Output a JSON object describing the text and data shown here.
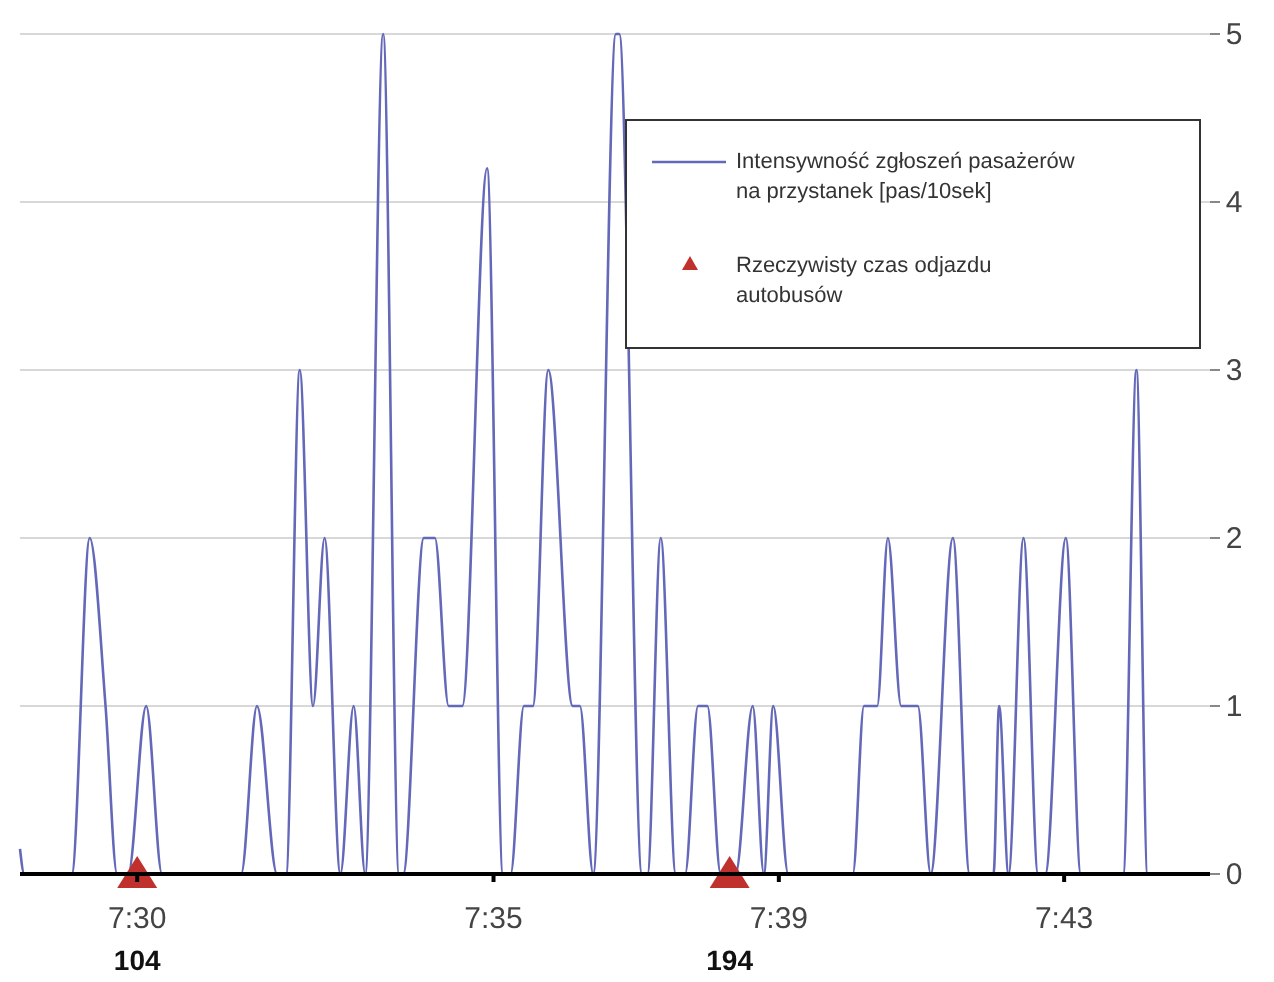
{
  "chart_data": {
    "type": "line",
    "xlim": [
      7.4726,
      7.7508
    ],
    "ylim": [
      0,
      5
    ],
    "yticks": [
      0,
      1,
      2,
      3,
      4,
      5
    ],
    "xticks": [
      {
        "value": 7.5,
        "label": "7:30"
      },
      {
        "value": 7.5833,
        "label": "7:35"
      },
      {
        "value": 7.65,
        "label": "7:39"
      },
      {
        "value": 7.7167,
        "label": "7:43"
      }
    ],
    "grid": "y",
    "legend": "top right",
    "marker": "none",
    "line_style": "solid",
    "series": [
      {
        "name": "Intensywność zgłoszeń pasażerów na przystanek [pas/10sek]",
        "color": "#6468b8",
        "x": [
          7.4726,
          7.4736,
          7.4847,
          7.4889,
          7.4926,
          7.4953,
          7.4979,
          7.5021,
          7.5058,
          7.5243,
          7.528,
          7.5327,
          7.5348,
          7.538,
          7.5411,
          7.5438,
          7.5475,
          7.5506,
          7.5533,
          7.5575,
          7.5612,
          7.5622,
          7.567,
          7.5696,
          7.5728,
          7.576,
          7.5818,
          7.5855,
          7.5873,
          7.5904,
          7.5925,
          7.5961,
          7.6018,
          7.6035,
          7.6066,
          7.6119,
          7.6127,
          7.618,
          7.6193,
          7.6224,
          7.6259,
          7.6281,
          7.6311,
          7.6333,
          7.6364,
          7.6399,
          7.6439,
          7.6465,
          7.6487,
          7.6522,
          7.6673,
          7.6699,
          7.673,
          7.6755,
          7.6786,
          7.6825,
          7.6855,
          7.6907,
          7.6946,
          7.7002,
          7.7015,
          7.7037,
          7.7072,
          7.7106,
          7.7123,
          7.7171,
          7.7206,
          7.7305,
          7.7336,
          7.7362,
          7.7409
        ],
        "values": [
          0.15,
          0,
          0,
          2,
          1,
          0,
          0,
          1,
          0,
          0,
          1,
          0,
          0,
          3,
          1,
          2,
          0,
          1,
          0,
          5,
          0,
          0,
          2,
          2,
          1,
          1,
          4.2,
          0,
          0,
          1,
          1,
          3,
          1,
          1,
          0,
          5,
          5,
          0,
          0,
          2,
          0,
          0,
          1,
          1,
          0,
          0,
          1,
          0,
          1,
          0,
          0,
          1,
          1,
          2,
          1,
          1,
          0,
          2,
          0,
          0,
          1,
          0,
          2,
          0,
          0,
          2,
          0,
          0,
          3,
          0,
          0
        ]
      },
      {
        "name": "Rzeczywisty czas odjazdu autobusów",
        "type": "scatter",
        "marker": "triangle",
        "color": "#c0302c",
        "x": [
          7.5,
          7.6385
        ],
        "values": [
          0,
          0
        ]
      }
    ],
    "annotations": [
      {
        "text": "104",
        "x": 7.5,
        "y": 0
      },
      {
        "text": "194",
        "x": 7.6385,
        "y": 0
      }
    ]
  }
}
